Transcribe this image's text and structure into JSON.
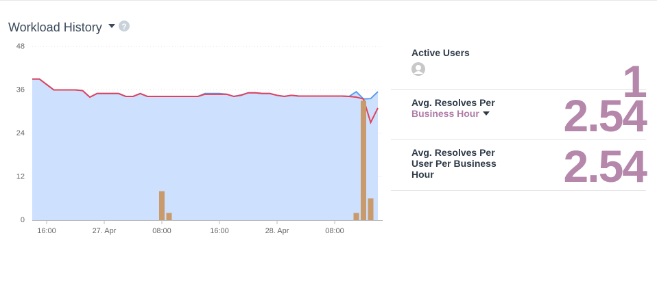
{
  "header": {
    "title": "Workload History"
  },
  "chart_data": {
    "type": "combo",
    "categories": [
      null,
      null,
      "16:00",
      null,
      null,
      null,
      null,
      null,
      null,
      null,
      "27. Apr",
      null,
      null,
      null,
      null,
      null,
      null,
      null,
      "08:00",
      null,
      null,
      null,
      null,
      null,
      null,
      null,
      "16:00",
      null,
      null,
      null,
      null,
      null,
      null,
      null,
      "28. Apr",
      null,
      null,
      null,
      null,
      null,
      null,
      null,
      "08:00",
      null,
      null,
      null,
      null,
      null,
      null
    ],
    "series": [
      {
        "type": "area",
        "color": "#5b9bf0",
        "fill": "#cde0fd",
        "values": [
          39,
          39,
          37.5,
          36,
          36,
          36,
          36,
          35.8,
          34,
          35,
          35,
          35,
          35,
          34.2,
          34.2,
          35,
          34.2,
          34.2,
          34.2,
          34.2,
          34.2,
          34.2,
          34.2,
          34.2,
          35,
          35,
          35,
          34.8,
          34.2,
          34.6,
          35.2,
          35.2,
          35,
          35,
          34.5,
          34.2,
          34.5,
          34.3,
          34.3,
          34.3,
          34.3,
          34.3,
          34.3,
          34.3,
          34.2,
          35.5,
          33.5,
          33.6,
          35.5
        ]
      },
      {
        "type": "line",
        "color": "#e2415a",
        "values": [
          39,
          39,
          37.5,
          36,
          36,
          36,
          36,
          35.8,
          34,
          35,
          35,
          35,
          35,
          34.2,
          34.2,
          35,
          34.2,
          34.2,
          34.2,
          34.2,
          34.2,
          34.2,
          34.2,
          34.2,
          34.8,
          34.8,
          34.8,
          34.8,
          34.2,
          34.5,
          35.2,
          35.2,
          35,
          35,
          34.5,
          34.2,
          34.5,
          34.3,
          34.3,
          34.3,
          34.3,
          34.3,
          34.3,
          34.3,
          34.2,
          34,
          33.5,
          27,
          31
        ]
      },
      {
        "type": "bar",
        "color": "#c99a6c",
        "values": [
          null,
          null,
          null,
          null,
          null,
          null,
          null,
          null,
          null,
          null,
          null,
          null,
          null,
          null,
          null,
          null,
          null,
          null,
          8,
          2,
          null,
          null,
          null,
          null,
          null,
          null,
          null,
          null,
          null,
          null,
          null,
          null,
          null,
          null,
          null,
          null,
          null,
          null,
          null,
          null,
          null,
          null,
          null,
          null,
          null,
          2,
          33,
          6,
          null
        ]
      }
    ],
    "ylim": [
      0,
      48
    ],
    "yticks": [
      0,
      12,
      24,
      36,
      48
    ],
    "grid": true
  },
  "stats": [
    {
      "label": "Active Users",
      "value": 1
    },
    {
      "label": "Avg. Resolves Per",
      "link": "Business Hour",
      "value": 2.54
    },
    {
      "label": "Avg. Resolves Per User Per Business Hour",
      "value": 2.54
    }
  ]
}
